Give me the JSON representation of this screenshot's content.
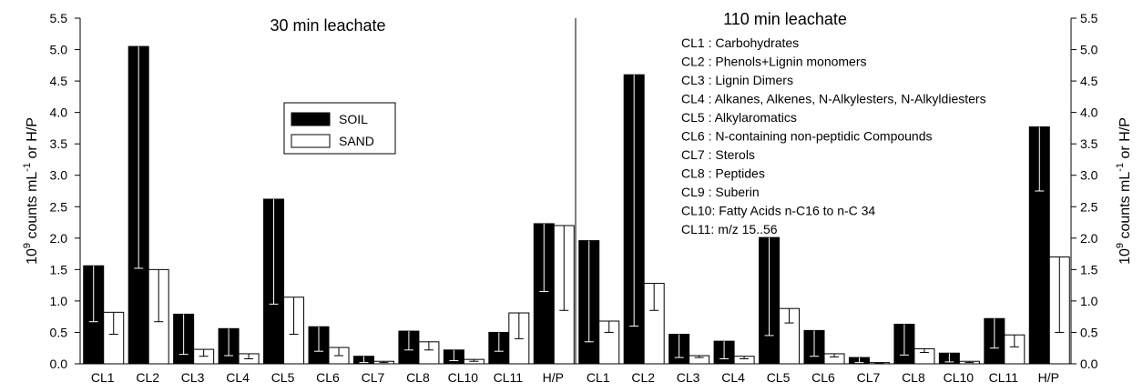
{
  "chart_data": [
    {
      "type": "bar",
      "title": "30 min leachate",
      "ylabel": "10^9 counts mL^-1 or H/P",
      "ylabel_parts": {
        "base": "10",
        "exp1": "9",
        "mid": " counts mL",
        "exp2": "-1",
        "tail": " or H/P"
      },
      "ylim": [
        0,
        5.5
      ],
      "yticks": [
        "0.0",
        "0.5",
        "1.0",
        "1.5",
        "2.0",
        "2.5",
        "3.0",
        "3.5",
        "4.0",
        "4.5",
        "5.0",
        "5.5"
      ],
      "categories": [
        "CL1",
        "CL2",
        "CL3",
        "CL4",
        "CL5",
        "CL6",
        "CL7",
        "CL8",
        "CL10",
        "CL11",
        "H/P"
      ],
      "legend": {
        "placement": "upper-center",
        "entries": [
          "SOIL",
          "SAND"
        ]
      },
      "series": [
        {
          "name": "SOIL",
          "color": "#000000",
          "values": [
            1.56,
            5.05,
            0.79,
            0.56,
            2.62,
            0.59,
            0.12,
            0.52,
            0.22,
            0.5,
            2.23
          ],
          "err_low": [
            0.67,
            1.52,
            0.15,
            0.13,
            0.95,
            0.2,
            0.02,
            0.22,
            0.05,
            0.2,
            1.15
          ],
          "err_high": [
            1.56,
            5.05,
            0.79,
            0.56,
            2.62,
            0.59,
            0.12,
            0.52,
            0.22,
            0.5,
            2.23
          ]
        },
        {
          "name": "SAND",
          "color": "#ffffff",
          "values": [
            0.82,
            1.5,
            0.23,
            0.16,
            1.06,
            0.26,
            0.04,
            0.35,
            0.07,
            0.81,
            2.2
          ],
          "err_low": [
            0.47,
            0.67,
            0.12,
            0.08,
            0.47,
            0.13,
            0.02,
            0.22,
            0.04,
            0.4,
            0.85
          ],
          "err_high": [
            0.82,
            1.5,
            0.23,
            0.16,
            1.06,
            0.26,
            0.04,
            0.35,
            0.07,
            0.81,
            2.2
          ]
        }
      ]
    },
    {
      "type": "bar",
      "title": "110 min leachate",
      "ylabel": "10^9 counts mL^-1 or H/P",
      "ylabel_parts": {
        "base": "10",
        "exp1": "9",
        "mid": " counts mL",
        "exp2": "-1",
        "tail": " or H/P"
      },
      "ylim": [
        0,
        5.5
      ],
      "yticks": [
        "0.0",
        "0.5",
        "1.0",
        "1.5",
        "2.0",
        "2.5",
        "3.0",
        "3.5",
        "4.0",
        "4.5",
        "5.0",
        "5.5"
      ],
      "categories": [
        "CL1",
        "CL2",
        "CL3",
        "CL4",
        "CL5",
        "CL6",
        "CL7",
        "CL8",
        "CL10",
        "CL11",
        "H/P"
      ],
      "annotations": [
        "CL1 : Carbohydrates",
        "CL2 : Phenols+Lignin monomers",
        "CL3 : Lignin Dimers",
        "CL4 : Alkanes, Alkenes, N-Alkylesters, N-Alkyldiesters",
        "CL5 : Alkylaromatics",
        "CL6 : N-containing non-peptidic Compounds",
        "CL7 : Sterols",
        "CL8 : Peptides",
        "CL9 : Suberin",
        "CL10: Fatty Acids n-C16 to n-C 34",
        "CL11: m/z 15..56"
      ],
      "series": [
        {
          "name": "SOIL",
          "color": "#000000",
          "values": [
            1.96,
            4.6,
            0.47,
            0.36,
            2.01,
            0.53,
            0.1,
            0.63,
            0.17,
            0.72,
            3.77
          ],
          "err_low": [
            0.35,
            0.6,
            0.1,
            0.08,
            0.45,
            0.12,
            0.02,
            0.14,
            0.03,
            0.25,
            2.75
          ],
          "err_high": [
            1.96,
            4.6,
            0.47,
            0.36,
            2.01,
            0.53,
            0.1,
            0.63,
            0.17,
            0.72,
            3.77
          ]
        },
        {
          "name": "SAND",
          "color": "#ffffff",
          "values": [
            0.68,
            1.28,
            0.13,
            0.12,
            0.88,
            0.16,
            0.02,
            0.24,
            0.04,
            0.46,
            1.7
          ],
          "err_low": [
            0.5,
            0.85,
            0.1,
            0.08,
            0.65,
            0.11,
            0.01,
            0.18,
            0.02,
            0.27,
            0.5
          ],
          "err_high": [
            0.68,
            1.28,
            0.13,
            0.12,
            0.88,
            0.16,
            0.02,
            0.24,
            0.04,
            0.46,
            1.7
          ]
        }
      ]
    }
  ]
}
